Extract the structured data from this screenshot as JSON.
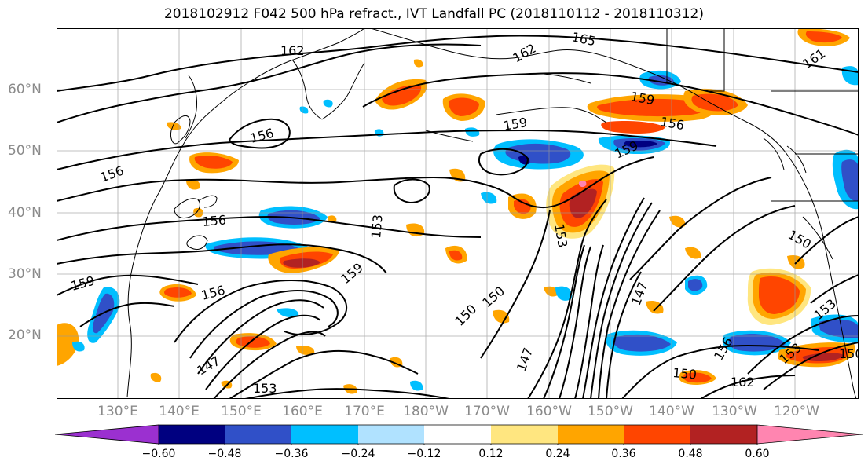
{
  "title": "2018102912 F042 500 hPa refract., IVT Landfall PC (2018110112 - 2018110312)",
  "latitude_labels": [
    "60°N",
    "50°N",
    "40°N",
    "30°N",
    "20°N"
  ],
  "longitude_labels": [
    "130°E",
    "140°E",
    "150°E",
    "160°E",
    "170°E",
    "180°W",
    "170°W",
    "160°W",
    "150°W",
    "140°W",
    "130°W",
    "120°W"
  ],
  "colorbar": {
    "ticks": [
      "−0.60",
      "−0.48",
      "−0.36",
      "−0.24",
      "−0.12",
      "0.12",
      "0.24",
      "0.36",
      "0.48",
      "0.60"
    ],
    "colors": [
      "#9b30d0",
      "#000080",
      "#3050c8",
      "#00bfff",
      "#b0e2ff",
      "#ffffff",
      "#ffe680",
      "#ffa500",
      "#ff4500",
      "#b22222",
      "#ff85b0"
    ]
  },
  "contour_labels": [
    "165",
    "162",
    "162",
    "161",
    "162",
    "159",
    "159",
    "156",
    "156",
    "156",
    "156",
    "159",
    "159",
    "156",
    "153",
    "153",
    "153",
    "150",
    "150",
    "150",
    "147",
    "147",
    "147",
    "147",
    "150",
    "156",
    "162",
    "153",
    "153",
    "150",
    "159",
    "162",
    "153",
    "156",
    "150"
  ]
}
